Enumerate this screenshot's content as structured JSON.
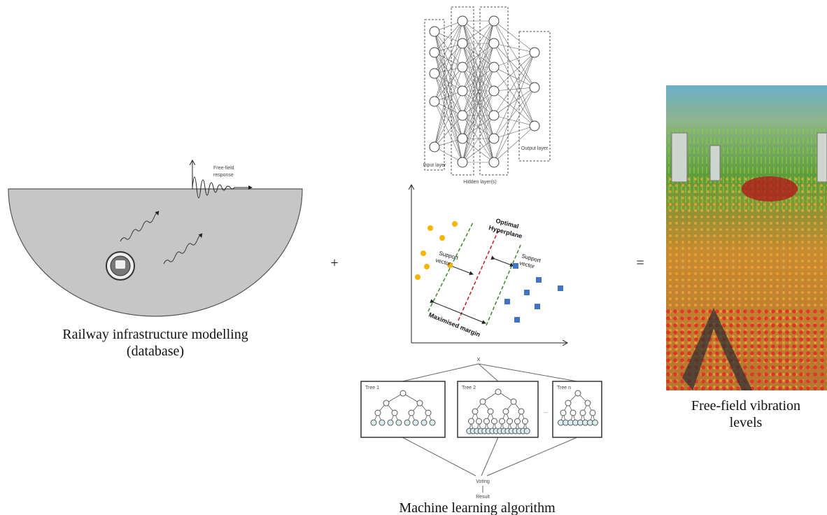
{
  "railway": {
    "caption": [
      "Railway infrastructure modelling",
      "(database)"
    ],
    "response_label": [
      "Free-field",
      "response"
    ]
  },
  "operators": {
    "plus": "+",
    "equals": "="
  },
  "machine_learning": {
    "caption": "Machine learning algorithm",
    "neural_network": {
      "input_label": "Input layer",
      "hidden_label": "Hidden layer(s)",
      "output_label": "Output layer"
    },
    "svm": {
      "hyperplane_label": [
        "Optimal",
        "Hyperplane"
      ],
      "support_vector_left": [
        "Support",
        "vector"
      ],
      "support_vector_right": [
        "Support",
        "vector"
      ],
      "margin_label": "Maximised margin"
    },
    "random_forest": {
      "input": "X",
      "trees": [
        "Tree 1",
        "Tree 2",
        "Tree n"
      ],
      "ellipsis": "...",
      "voting": "Voting",
      "result": "Result"
    }
  },
  "output": {
    "caption": [
      "Free-field vibration",
      "levels"
    ]
  }
}
